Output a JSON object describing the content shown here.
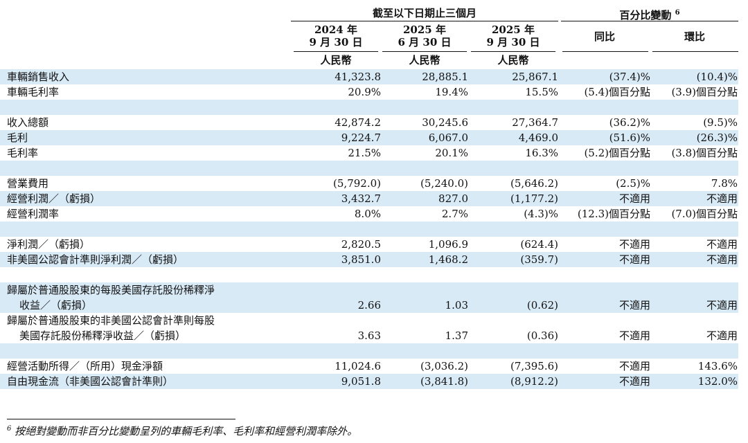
{
  "header": {
    "period_group": "截至以下日期止三個月",
    "change_group": "百分比變動",
    "change_group_note": "6",
    "columns": [
      {
        "year": "2024 年",
        "date": "9 月 30 日",
        "unit": "人民幣"
      },
      {
        "year": "2025 年",
        "date": "6 月 30 日",
        "unit": "人民幣"
      },
      {
        "year": "2025 年",
        "date": "9 月 30 日",
        "unit": "人民幣"
      }
    ],
    "yoy": "同比",
    "qoq": "環比"
  },
  "rows": [
    {
      "label": "車輛銷售收入",
      "v1": "41,323.8",
      "v2": "28,885.1",
      "v3": "25,867.1",
      "yoy": "(37.4)%",
      "qoq": "(10.4)%"
    },
    {
      "label": "車輛毛利率",
      "v1": "20.9%",
      "v2": "19.4%",
      "v3": "15.5%",
      "yoy": "(5.4)個百分點",
      "qoq": "(3.9)個百分點"
    },
    {
      "label": "收入總額",
      "v1": "42,874.2",
      "v2": "30,245.6",
      "v3": "27,364.7",
      "yoy": "(36.2)%",
      "qoq": "(9.5)%"
    },
    {
      "label": "毛利",
      "v1": "9,224.7",
      "v2": "6,067.0",
      "v3": "4,469.0",
      "yoy": "(51.6)%",
      "qoq": "(26.3)%"
    },
    {
      "label": "毛利率",
      "v1": "21.5%",
      "v2": "20.1%",
      "v3": "16.3%",
      "yoy": "(5.2)個百分點",
      "qoq": "(3.8)個百分點"
    },
    {
      "label": "營業費用",
      "v1": "(5,792.0)",
      "v2": "(5,240.0)",
      "v3": "(5,646.2)",
      "yoy": "(2.5)%",
      "qoq": "7.8%"
    },
    {
      "label": "經營利潤／（虧損）",
      "v1": "3,432.7",
      "v2": "827.0",
      "v3": "(1,177.2)",
      "yoy": "不適用",
      "qoq": "不適用"
    },
    {
      "label": "經營利潤率",
      "v1": "8.0%",
      "v2": "2.7%",
      "v3": "(4.3)%",
      "yoy": "(12.3)個百分點",
      "qoq": "(7.0)個百分點"
    },
    {
      "label": "淨利潤／（虧損）",
      "v1": "2,820.5",
      "v2": "1,096.9",
      "v3": "(624.4)",
      "yoy": "不適用",
      "qoq": "不適用"
    },
    {
      "label": "非美國公認會計準則淨利潤／（虧損）",
      "v1": "3,851.0",
      "v2": "1,468.2",
      "v3": "(359.7)",
      "yoy": "不適用",
      "qoq": "不適用"
    },
    {
      "label_line1": "歸屬於普通股股東的每股美國存託股份稀釋淨",
      "label_line2": "收益／（虧損）",
      "v1": "2.66",
      "v2": "1.03",
      "v3": "(0.62)",
      "yoy": "不適用",
      "qoq": "不適用"
    },
    {
      "label_line1": "歸屬於普通股股東的非美國公認會計準則每股",
      "label_line2": "美國存託股份稀釋淨收益／（虧損）",
      "v1": "3.63",
      "v2": "1.37",
      "v3": "(0.36)",
      "yoy": "不適用",
      "qoq": "不適用"
    },
    {
      "label": "經營活動所得／（所用）現金淨額",
      "v1": "11,024.6",
      "v2": "(3,036.2)",
      "v3": "(7,395.6)",
      "yoy": "不適用",
      "qoq": "143.6%"
    },
    {
      "label": "自由現金流（非美國公認會計準則）",
      "v1": "9,051.8",
      "v2": "(3,841.8)",
      "v3": "(8,912.2)",
      "yoy": "不適用",
      "qoq": "132.0%"
    }
  ],
  "footnote": {
    "marker": "6",
    "text": "按絕對變動而非百分比變動呈列的車輛毛利率、毛利率和經營利潤率除外。"
  }
}
